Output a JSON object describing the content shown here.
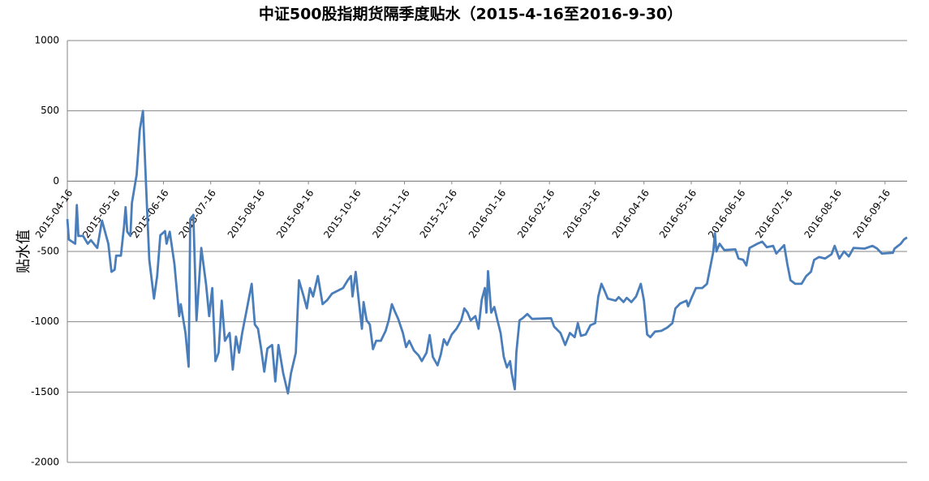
{
  "chart_data": {
    "type": "line",
    "title": "中证500股指期货隔季度贴水（2015-4-16至2016-9-30）",
    "y_label": "贴水值",
    "color": "#4a7ebb",
    "grid": true,
    "ylim": [
      -2000,
      1000
    ],
    "yticks": [
      -2000,
      -1500,
      -1000,
      -500,
      0,
      500,
      1000
    ],
    "xlim": [
      "2015-04-16",
      "2016-09-30"
    ],
    "xticks": [
      "2015-04-16",
      "2015-05-16",
      "2015-06-16",
      "2015-07-16",
      "2015-08-16",
      "2015-09-16",
      "2015-10-16",
      "2015-11-16",
      "2015-12-16",
      "2016-01-16",
      "2016-02-16",
      "2016-03-16",
      "2016-04-16",
      "2016-05-16",
      "2016-06-16",
      "2016-07-16",
      "2016-08-16",
      "2016-09-16"
    ],
    "x": [
      "2015-04-16",
      "2015-04-17",
      "2015-04-21",
      "2015-04-22",
      "2015-04-23",
      "2015-04-26",
      "2015-04-29",
      "2015-05-01",
      "2015-05-05",
      "2015-05-08",
      "2015-05-12",
      "2015-05-14",
      "2015-05-16",
      "2015-05-17",
      "2015-05-20",
      "2015-05-22",
      "2015-05-23",
      "2015-05-24",
      "2015-05-26",
      "2015-05-27",
      "2015-05-30",
      "2015-06-01",
      "2015-06-03",
      "2015-06-05",
      "2015-06-07",
      "2015-06-10",
      "2015-06-12",
      "2015-06-14",
      "2015-06-17",
      "2015-06-18",
      "2015-06-20",
      "2015-06-23",
      "2015-06-26",
      "2015-06-27",
      "2015-06-30",
      "2015-07-02",
      "2015-07-03",
      "2015-07-05",
      "2015-07-07",
      "2015-07-10",
      "2015-07-13",
      "2015-07-15",
      "2015-07-17",
      "2015-07-19",
      "2015-07-21",
      "2015-07-23",
      "2015-07-25",
      "2015-07-28",
      "2015-07-30",
      "2015-08-01",
      "2015-08-03",
      "2015-08-05",
      "2015-08-08",
      "2015-08-11",
      "2015-08-13",
      "2015-08-15",
      "2015-08-17",
      "2015-08-19",
      "2015-08-21",
      "2015-08-24",
      "2015-08-26",
      "2015-08-28",
      "2015-08-31",
      "2015-09-03",
      "2015-09-05",
      "2015-09-08",
      "2015-09-10",
      "2015-09-13",
      "2015-09-15",
      "2015-09-17",
      "2015-09-19",
      "2015-09-22",
      "2015-09-25",
      "2015-09-28",
      "2015-10-01",
      "2015-10-08",
      "2015-10-11",
      "2015-10-13",
      "2015-10-14",
      "2015-10-16",
      "2015-10-18",
      "2015-10-20",
      "2015-10-21",
      "2015-10-23",
      "2015-10-25",
      "2015-10-27",
      "2015-10-29",
      "2015-11-01",
      "2015-11-04",
      "2015-11-06",
      "2015-11-08",
      "2015-11-10",
      "2015-11-12",
      "2015-11-15",
      "2015-11-17",
      "2015-11-19",
      "2015-11-22",
      "2015-11-25",
      "2015-11-27",
      "2015-11-30",
      "2015-12-02",
      "2015-12-04",
      "2015-12-07",
      "2015-12-09",
      "2015-12-11",
      "2015-12-13",
      "2015-12-16",
      "2015-12-19",
      "2015-12-22",
      "2015-12-24",
      "2015-12-26",
      "2015-12-28",
      "2015-12-31",
      "2016-01-02",
      "2016-01-04",
      "2016-01-06",
      "2016-01-07",
      "2016-01-08",
      "2016-01-10",
      "2016-01-12",
      "2016-01-14",
      "2016-01-16",
      "2016-01-18",
      "2016-01-20",
      "2016-01-22",
      "2016-01-23",
      "2016-01-25",
      "2016-01-26",
      "2016-01-28",
      "2016-01-30",
      "2016-02-02",
      "2016-02-05",
      "2016-02-17",
      "2016-02-19",
      "2016-02-23",
      "2016-02-26",
      "2016-02-29",
      "2016-03-03",
      "2016-03-05",
      "2016-03-07",
      "2016-03-10",
      "2016-03-13",
      "2016-03-16",
      "2016-03-18",
      "2016-03-20",
      "2016-03-22",
      "2016-03-24",
      "2016-03-29",
      "2016-03-31",
      "2016-04-03",
      "2016-04-05",
      "2016-04-08",
      "2016-04-11",
      "2016-04-14",
      "2016-04-16",
      "2016-04-18",
      "2016-04-20",
      "2016-04-23",
      "2016-04-27",
      "2016-05-01",
      "2016-05-04",
      "2016-05-06",
      "2016-05-09",
      "2016-05-13",
      "2016-05-14",
      "2016-05-16",
      "2016-05-19",
      "2016-05-23",
      "2016-05-26",
      "2016-05-28",
      "2016-05-30",
      "2016-05-31",
      "2016-06-01",
      "2016-06-03",
      "2016-06-06",
      "2016-06-13",
      "2016-06-15",
      "2016-06-18",
      "2016-06-20",
      "2016-06-22",
      "2016-06-27",
      "2016-06-30",
      "2016-07-03",
      "2016-07-07",
      "2016-07-09",
      "2016-07-14",
      "2016-07-16",
      "2016-07-18",
      "2016-07-21",
      "2016-07-25",
      "2016-07-28",
      "2016-07-31",
      "2016-08-02",
      "2016-08-05",
      "2016-08-09",
      "2016-08-13",
      "2016-08-15",
      "2016-08-18",
      "2016-08-21",
      "2016-08-24",
      "2016-08-27",
      "2016-09-03",
      "2016-09-08",
      "2016-09-11",
      "2016-09-14",
      "2016-09-21",
      "2016-09-22",
      "2016-09-26",
      "2016-09-28",
      "2016-09-30"
    ],
    "values": [
      -270,
      -415,
      -445,
      -170,
      -390,
      -390,
      -445,
      -420,
      -475,
      -280,
      -445,
      -645,
      -630,
      -530,
      -530,
      -320,
      -185,
      -360,
      -390,
      -155,
      45,
      365,
      500,
      -40,
      -560,
      -835,
      -675,
      -385,
      -355,
      -445,
      -360,
      -590,
      -960,
      -875,
      -1080,
      -1320,
      -270,
      -240,
      -990,
      -475,
      -730,
      -960,
      -760,
      -1280,
      -1220,
      -850,
      -1135,
      -1080,
      -1340,
      -1105,
      -1220,
      -1080,
      -905,
      -730,
      -1020,
      -1050,
      -1190,
      -1355,
      -1190,
      -1165,
      -1425,
      -1165,
      -1365,
      -1510,
      -1365,
      -1220,
      -705,
      -820,
      -905,
      -760,
      -820,
      -675,
      -875,
      -845,
      -800,
      -760,
      -705,
      -675,
      -820,
      -645,
      -850,
      -1050,
      -860,
      -990,
      -1020,
      -1195,
      -1135,
      -1135,
      -1065,
      -990,
      -875,
      -930,
      -980,
      -1080,
      -1180,
      -1135,
      -1205,
      -1240,
      -1280,
      -1220,
      -1095,
      -1250,
      -1310,
      -1235,
      -1125,
      -1165,
      -1090,
      -1050,
      -990,
      -905,
      -935,
      -990,
      -960,
      -1050,
      -845,
      -760,
      -935,
      -640,
      -935,
      -895,
      -990,
      -1080,
      -1250,
      -1325,
      -1280,
      -1365,
      -1480,
      -1220,
      -990,
      -975,
      -945,
      -980,
      -975,
      -1035,
      -1080,
      -1165,
      -1080,
      -1110,
      -1010,
      -1100,
      -1090,
      -1025,
      -1010,
      -820,
      -730,
      -780,
      -835,
      -850,
      -825,
      -860,
      -830,
      -860,
      -820,
      -730,
      -850,
      -1090,
      -1110,
      -1070,
      -1065,
      -1040,
      -1010,
      -905,
      -870,
      -850,
      -890,
      -835,
      -760,
      -760,
      -730,
      -615,
      -500,
      -370,
      -500,
      -445,
      -490,
      -485,
      -550,
      -560,
      -600,
      -475,
      -445,
      -430,
      -470,
      -460,
      -515,
      -455,
      -590,
      -705,
      -730,
      -730,
      -675,
      -645,
      -560,
      -540,
      -550,
      -520,
      -460,
      -550,
      -500,
      -535,
      -475,
      -480,
      -460,
      -480,
      -515,
      -510,
      -480,
      -445,
      -415,
      -400
    ]
  }
}
